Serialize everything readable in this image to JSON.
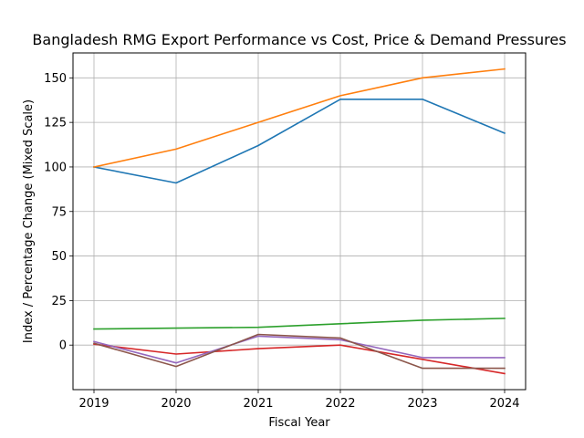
{
  "chart_data": {
    "type": "line",
    "title": "Bangladesh RMG Export Performance vs Cost, Price & Demand Pressures",
    "xlabel": "Fiscal Year",
    "ylabel": "Index / Percentage Change (Mixed Scale)",
    "x": [
      "2019",
      "2020",
      "2021",
      "2022",
      "2023",
      "2024"
    ],
    "ylim": [
      -25,
      164
    ],
    "yticks": [
      0,
      25,
      50,
      75,
      100,
      125,
      150
    ],
    "grid": true,
    "legend": "none",
    "series": [
      {
        "color": "#1f77b4",
        "values": [
          100,
          91,
          112,
          138,
          138,
          119
        ]
      },
      {
        "color": "#ff7f0e",
        "values": [
          100,
          110,
          125,
          140,
          150,
          155
        ]
      },
      {
        "color": "#2ca02c",
        "values": [
          9,
          9.5,
          10,
          12,
          14,
          15
        ]
      },
      {
        "color": "#d62728",
        "values": [
          0.5,
          -5,
          -2,
          0,
          -8,
          -16
        ]
      },
      {
        "color": "#9467bd",
        "values": [
          2,
          -10,
          5,
          3,
          -7,
          -7
        ]
      },
      {
        "color": "#8c564b",
        "values": [
          1,
          -12,
          6,
          4,
          -13,
          -13
        ]
      }
    ]
  }
}
